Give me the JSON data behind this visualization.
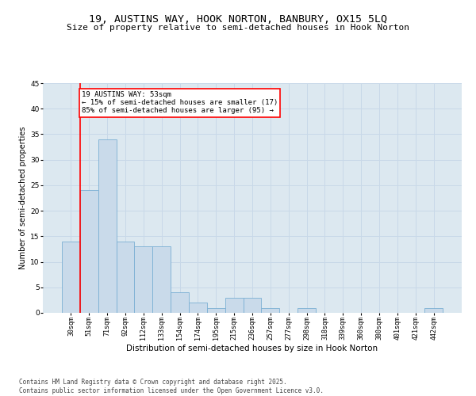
{
  "title1": "19, AUSTINS WAY, HOOK NORTON, BANBURY, OX15 5LQ",
  "title2": "Size of property relative to semi-detached houses in Hook Norton",
  "xlabel": "Distribution of semi-detached houses by size in Hook Norton",
  "ylabel": "Number of semi-detached properties",
  "categories": [
    "30sqm",
    "51sqm",
    "71sqm",
    "92sqm",
    "112sqm",
    "133sqm",
    "154sqm",
    "174sqm",
    "195sqm",
    "215sqm",
    "236sqm",
    "257sqm",
    "277sqm",
    "298sqm",
    "318sqm",
    "339sqm",
    "360sqm",
    "380sqm",
    "401sqm",
    "421sqm",
    "442sqm"
  ],
  "values": [
    14,
    24,
    34,
    14,
    13,
    13,
    4,
    2,
    1,
    3,
    3,
    1,
    0,
    1,
    0,
    0,
    0,
    0,
    0,
    0,
    1
  ],
  "bar_color": "#c9daea",
  "bar_edge_color": "#7bafd4",
  "grid_color": "#c8d8e8",
  "bg_color": "#dce8f0",
  "annotation_line1": "19 AUSTINS WAY: 53sqm",
  "annotation_line2": "← 15% of semi-detached houses are smaller (17)",
  "annotation_line3": "85% of semi-detached houses are larger (95) →",
  "vline_x": 0.5,
  "vline_color": "red",
  "ylim": [
    0,
    45
  ],
  "yticks": [
    0,
    5,
    10,
    15,
    20,
    25,
    30,
    35,
    40,
    45
  ],
  "footer": "Contains HM Land Registry data © Crown copyright and database right 2025.\nContains public sector information licensed under the Open Government Licence v3.0.",
  "annotation_fontsize": 6.5,
  "title1_fontsize": 9.5,
  "title2_fontsize": 8.0,
  "tick_fontsize": 6.0,
  "ylabel_fontsize": 7.0,
  "xlabel_fontsize": 7.5,
  "footer_fontsize": 5.5
}
